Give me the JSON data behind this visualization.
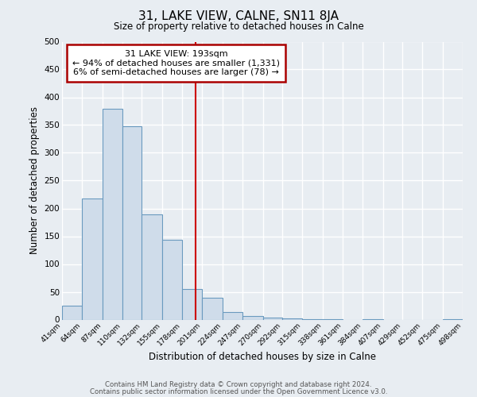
{
  "title": "31, LAKE VIEW, CALNE, SN11 8JA",
  "subtitle": "Size of property relative to detached houses in Calne",
  "xlabel": "Distribution of detached houses by size in Calne",
  "ylabel": "Number of detached properties",
  "bar_edges": [
    41,
    64,
    87,
    110,
    132,
    155,
    178,
    201,
    224,
    247,
    270,
    292,
    315,
    338,
    361,
    384,
    407,
    429,
    452,
    475,
    498
  ],
  "bar_values": [
    25,
    218,
    380,
    348,
    190,
    143,
    55,
    40,
    13,
    7,
    3,
    2,
    1,
    1,
    0,
    1,
    0,
    0,
    0,
    1
  ],
  "bar_color": "#cfdcea",
  "bar_edgecolor": "#6a9abf",
  "property_line_x": 193,
  "property_line_color": "#cc0000",
  "annotation_title": "31 LAKE VIEW: 193sqm",
  "annotation_line1": "← 94% of detached houses are smaller (1,331)",
  "annotation_line2": "6% of semi-detached houses are larger (78) →",
  "annotation_box_edgecolor": "#aa0000",
  "annotation_box_facecolor": "#ffffff",
  "ylim": [
    0,
    500
  ],
  "yticks": [
    0,
    50,
    100,
    150,
    200,
    250,
    300,
    350,
    400,
    450,
    500
  ],
  "tick_labels": [
    "41sqm",
    "64sqm",
    "87sqm",
    "110sqm",
    "132sqm",
    "155sqm",
    "178sqm",
    "201sqm",
    "224sqm",
    "247sqm",
    "270sqm",
    "292sqm",
    "315sqm",
    "338sqm",
    "361sqm",
    "384sqm",
    "407sqm",
    "429sqm",
    "452sqm",
    "475sqm",
    "498sqm"
  ],
  "footer_line1": "Contains HM Land Registry data © Crown copyright and database right 2024.",
  "footer_line2": "Contains public sector information licensed under the Open Government Licence v3.0.",
  "fig_bg_color": "#e8edf2",
  "plot_bg_color": "#e8edf2",
  "grid_color": "#ffffff"
}
